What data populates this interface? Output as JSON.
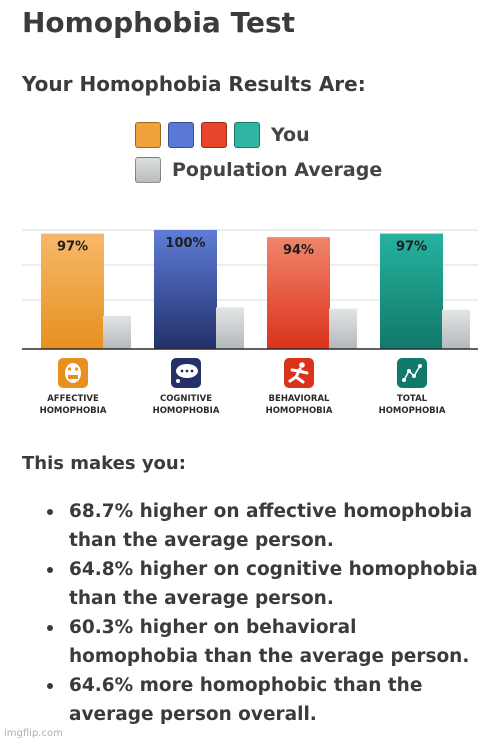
{
  "page": {
    "title": "Homophobia Test",
    "subtitle": "Your Homophobia Results Are:"
  },
  "legend": {
    "you_label": "You",
    "population_label": "Population Average",
    "you_colors": [
      "#f0a13a",
      "#5a78d6",
      "#e8452a",
      "#2fb6a3"
    ],
    "population_color": "#b9bcbd"
  },
  "chart_data": {
    "type": "bar",
    "categories": [
      "AFFECTIVE HOMOPHOBIA",
      "COGNITIVE HOMOPHOBIA",
      "BEHAVIORAL HOMOPHOBIA",
      "TOTAL HOMOPHOBIA"
    ],
    "icons": [
      "mask-icon",
      "thought-bubble-icon",
      "running-person-icon",
      "line-graph-icon"
    ],
    "ylim": [
      0,
      100
    ],
    "grid": true,
    "series": [
      {
        "name": "You",
        "values": [
          97,
          100,
          94,
          97
        ],
        "labels": [
          "97%",
          "100%",
          "94%",
          "97%"
        ],
        "colors": [
          [
            "#f7b96a",
            "#e7901f"
          ],
          [
            "#5e7dd8",
            "#23306a"
          ],
          [
            "#f2846c",
            "#d9331b"
          ],
          [
            "#26b29f",
            "#11796a"
          ]
        ]
      },
      {
        "name": "Population Average",
        "values": [
          28,
          35,
          34,
          33
        ],
        "colors": [
          [
            "#e2e5e6",
            "#b3b8ba"
          ]
        ]
      }
    ]
  },
  "results": {
    "heading": "This makes you:",
    "items": [
      "68.7% higher on affective homophobia than the average person.",
      "64.8% higher on cognitive homophobia than the average person.",
      "60.3% higher on behavioral homophobia than the average person.",
      "64.6% more homophobic than the average person overall."
    ]
  },
  "watermark": "imgflip.com"
}
